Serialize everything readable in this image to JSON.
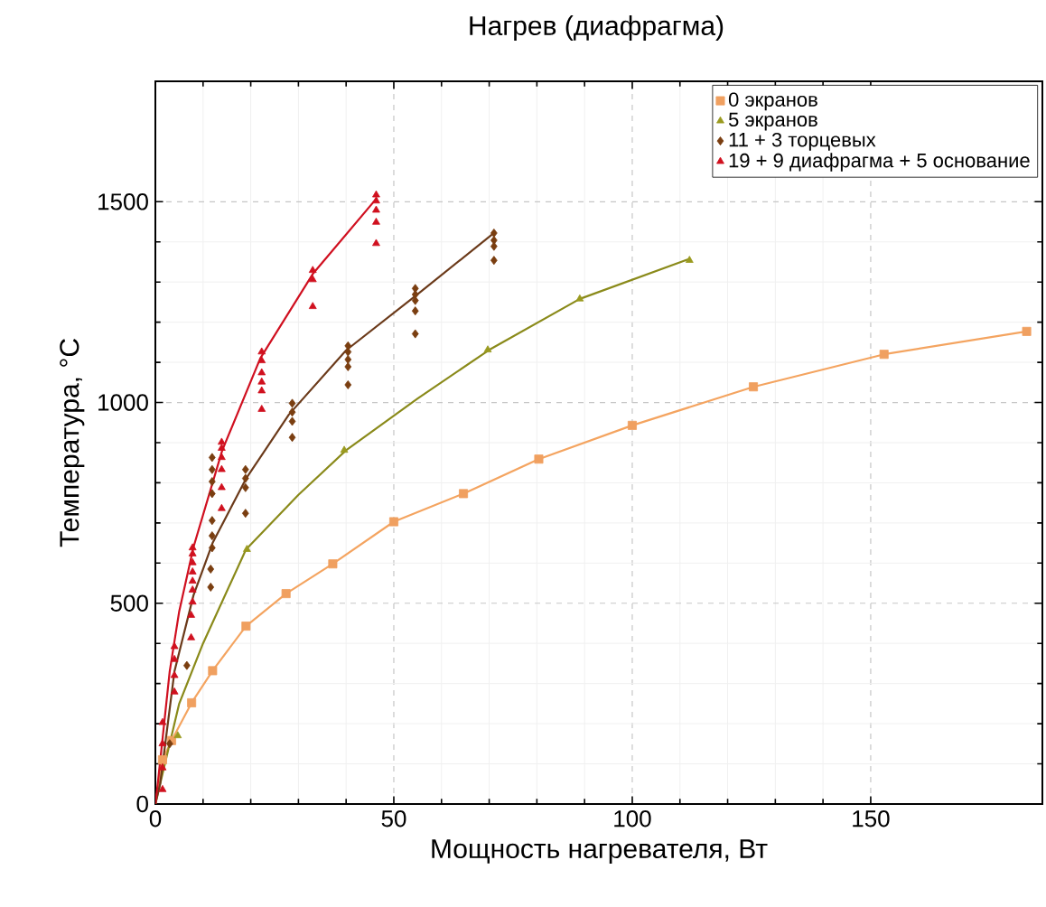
{
  "chart_data": {
    "type": "scatter",
    "title": "Нагрев (диафрагма)",
    "xlabel": "Мощность нагревателя, Вт",
    "ylabel": "Температура, °C",
    "xlim": [
      0,
      186
    ],
    "ylim": [
      0,
      1800
    ],
    "xticks": [
      0,
      50,
      100,
      150
    ],
    "yticks": [
      0,
      500,
      1000,
      1500
    ],
    "grid": true,
    "legend": "top right",
    "series": [
      {
        "name": "0 экранов",
        "color": "#f0a060",
        "marker": "square",
        "x": [
          1.5,
          3.4,
          7.6,
          12,
          19,
          27.4,
          37.2,
          50,
          64.6,
          80.4,
          100,
          125.4,
          152.8,
          182.7
        ],
        "values": [
          110,
          158,
          252,
          332,
          443,
          524,
          598,
          703,
          773,
          859,
          943,
          1039,
          1120,
          1177
        ]
      },
      {
        "name": "5 экранов",
        "color": "#9a9a20",
        "marker": "triangle",
        "x": [
          4.7,
          19.2,
          39.6,
          69.7,
          89,
          112
        ],
        "values": [
          170,
          634,
          881,
          1131,
          1258,
          1354
        ]
      },
      {
        "name": "11 + 3 торцевых",
        "color": "#7a3e10",
        "marker": "diamond",
        "x": [
          3,
          6.6,
          11.6,
          11.6,
          11.9,
          11.9,
          11.9,
          11.9,
          11.9,
          11.9,
          11.9,
          18.9,
          18.9,
          18.9,
          18.9,
          28.7,
          28.7,
          28.7,
          28.7,
          40.4,
          40.4,
          40.4,
          40.4,
          40.4,
          54.5,
          54.5,
          54.5,
          54.5,
          54.5,
          71,
          71,
          71,
          71
        ],
        "values": [
          150,
          345,
          540,
          585,
          863,
          833,
          803,
          773,
          706,
          668,
          638,
          833,
          811,
          788,
          724,
          998,
          976,
          953,
          913,
          1141,
          1126,
          1107,
          1089,
          1044,
          1284,
          1269,
          1254,
          1228,
          1171,
          1422,
          1404,
          1389,
          1354
        ]
      },
      {
        "name": "19 + 9 диафрагма + 5 основание",
        "color": "#d0101e",
        "marker": "triangle",
        "x": [
          1.5,
          1.5,
          1.5,
          1.5,
          4,
          4,
          4,
          4,
          7.5,
          7.5,
          7.8,
          7.8,
          7.8,
          7.8,
          7.8,
          7.8,
          7.8,
          13.9,
          13.9,
          13.9,
          13.9,
          13.9,
          13.9,
          22.3,
          22.3,
          22.3,
          22.3,
          22.3,
          22.3,
          33,
          33,
          33,
          46.3,
          46.3,
          46.3,
          46.3,
          46.3
        ],
        "values": [
          36,
          90,
          150,
          203,
          279,
          320,
          360,
          392,
          414,
          470,
          638,
          623,
          601,
          578,
          555,
          533,
          503,
          901,
          886,
          863,
          833,
          788,
          736,
          1126,
          1104,
          1074,
          1051,
          1029,
          983,
          1329,
          1306,
          1239,
          1517,
          1502,
          1479,
          1449,
          1396
        ]
      },
      {
        "type": "line",
        "color": "#f4a460",
        "x": [
          0,
          1.5,
          3.4,
          7.6,
          12,
          19,
          27.4,
          37.2,
          50,
          64.6,
          80.4,
          100,
          125.4,
          152.8,
          182.7
        ],
        "values": [
          0,
          110,
          158,
          252,
          332,
          443,
          524,
          598,
          703,
          773,
          859,
          943,
          1039,
          1120,
          1177
        ]
      },
      {
        "type": "line",
        "color": "#8a8a1a",
        "x": [
          0,
          2,
          5,
          10,
          19,
          30,
          40,
          55,
          70,
          89,
          112
        ],
        "values": [
          0,
          100,
          250,
          400,
          634,
          770,
          881,
          1010,
          1131,
          1258,
          1358
        ]
      },
      {
        "type": "line",
        "color": "#6b3a1a",
        "x": [
          0,
          1,
          4,
          8,
          12,
          19,
          28,
          40,
          55,
          71
        ],
        "values": [
          0,
          50,
          330,
          520,
          650,
          810,
          970,
          1130,
          1270,
          1422
        ]
      },
      {
        "type": "line",
        "color": "#d01020",
        "x": [
          0,
          0.5,
          3,
          5,
          8,
          14,
          22,
          33,
          46.5
        ],
        "values": [
          0,
          50,
          330,
          480,
          640,
          880,
          1110,
          1320,
          1510
        ]
      }
    ]
  }
}
